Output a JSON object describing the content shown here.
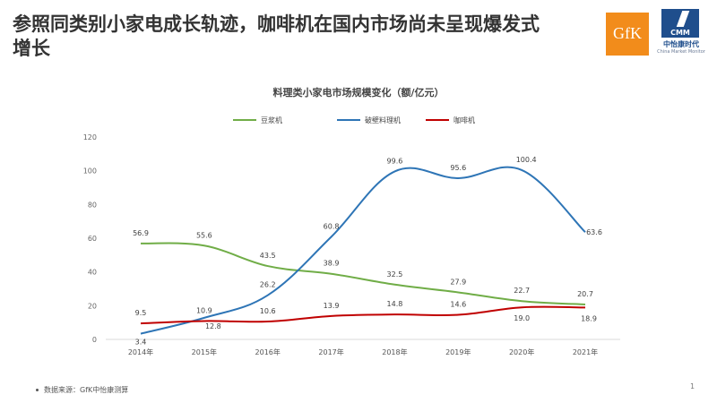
{
  "page": {
    "title": "参照同类别小家电成长轨迹，咖啡机在国内市场尚未呈现爆发式增长",
    "source": "数据来源：GfK中怡康测算",
    "page_number": "1"
  },
  "logos": {
    "gfk": "GfK",
    "cmm": "CMM",
    "cmm_cn": "中怡康时代",
    "cmm_en": "China Market Monitor"
  },
  "chart_data": {
    "type": "line",
    "title": "料理类小家电市场规模变化（额/亿元）",
    "categories": [
      "2014年",
      "2015年",
      "2016年",
      "2017年",
      "2018年",
      "2019年",
      "2020年",
      "2021年"
    ],
    "ylim": [
      0,
      120
    ],
    "yticks": [
      "0",
      "20",
      "40",
      "60",
      "80",
      "100",
      "120"
    ],
    "legend_position": "top",
    "grid": false,
    "series": [
      {
        "name": "豆浆机",
        "color": "#70ad47",
        "values": [
          56.9,
          55.6,
          43.5,
          38.9,
          32.5,
          27.9,
          22.7,
          20.7
        ],
        "labels": [
          "56.9",
          "55.6",
          "43.5",
          "38.9",
          "32.5",
          "27.9",
          "22.7",
          "20.7"
        ]
      },
      {
        "name": "破壁料理机",
        "color": "#2e75b6",
        "values": [
          3.4,
          12.8,
          26.2,
          60.8,
          99.6,
          95.6,
          100.4,
          63.6
        ],
        "labels": [
          "3.4",
          "12.8",
          "26.2",
          "60.8",
          "99.6",
          "95.6",
          "100.4",
          "63.6"
        ]
      },
      {
        "name": "咖啡机",
        "color": "#c00000",
        "values": [
          9.5,
          10.9,
          10.6,
          13.9,
          14.8,
          14.6,
          19.0,
          18.9
        ],
        "labels": [
          "9.5",
          "10.9",
          "10.6",
          "13.9",
          "14.8",
          "14.6",
          "19.0",
          "18.9"
        ]
      }
    ]
  }
}
